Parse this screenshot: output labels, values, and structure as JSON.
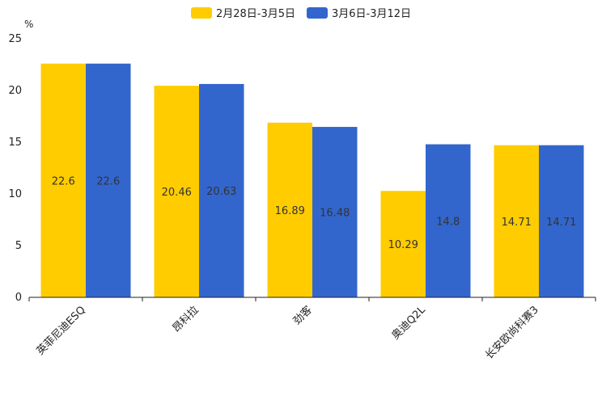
{
  "chart_data": {
    "type": "bar",
    "unit_label": "%",
    "categories": [
      "英菲尼迪ESQ",
      "昂科拉",
      "劲客",
      "奥迪Q2L",
      "长安欧尚科赛3"
    ],
    "series": [
      {
        "name": "2月28日-3月5日",
        "color": "#FFCC00",
        "values": [
          22.6,
          20.46,
          16.89,
          10.29,
          14.71
        ],
        "labels": [
          "22.6",
          "20.46",
          "16.89",
          "10.29",
          "14.71"
        ]
      },
      {
        "name": "3月6日-3月12日",
        "color": "#3366CC",
        "values": [
          22.6,
          20.63,
          16.48,
          14.8,
          14.71
        ],
        "labels": [
          "22.6",
          "20.63",
          "16.48",
          "14.8",
          "14.71"
        ]
      }
    ],
    "ylim": [
      0,
      25
    ],
    "yticks": [
      "0",
      "5",
      "10",
      "15",
      "20",
      "25"
    ],
    "legend_position": "top-center"
  }
}
